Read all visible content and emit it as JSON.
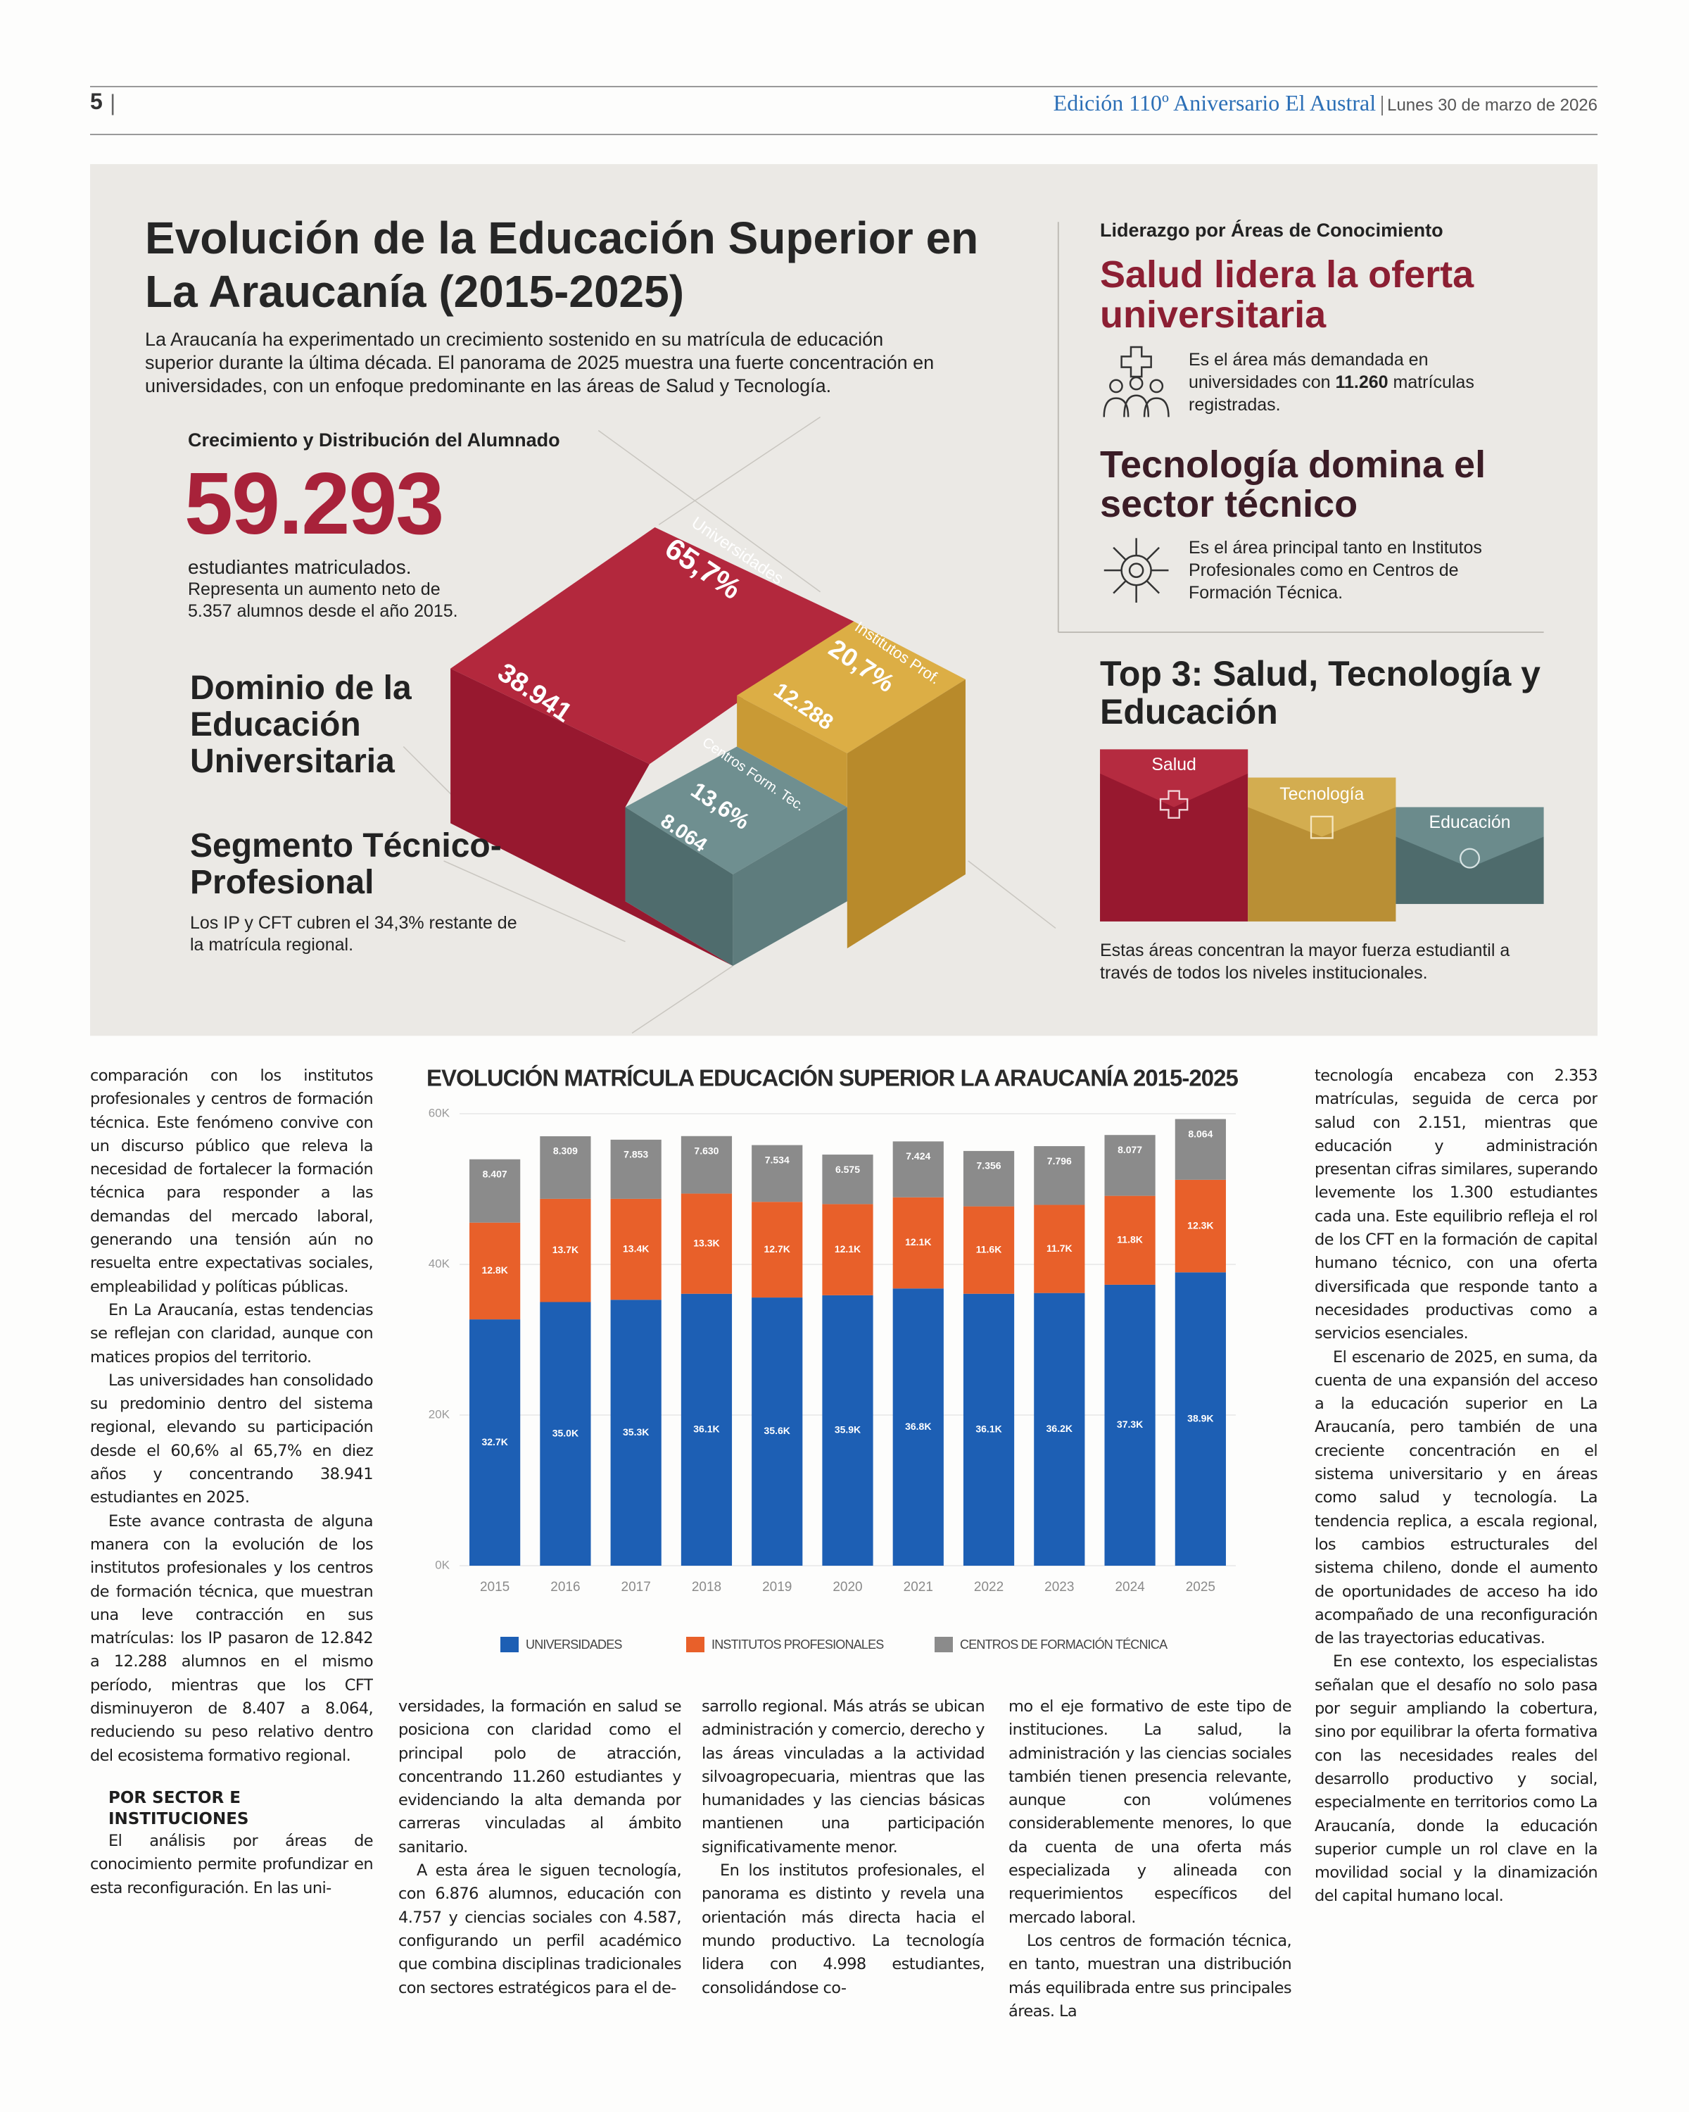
{
  "header": {
    "page_number": "5",
    "edition": "Edición 110º Aniversario El Austral",
    "date": "Lunes 30 de marzo de 2026"
  },
  "infographic": {
    "title": "Evolución de la Educación Superior en La Araucanía (2015-2025)",
    "intro": "La Araucanía ha experimentado un crecimiento sostenido en su matrícula de educación superior durante la última década. El panorama de 2025 muestra una fuerte concentración en universidades, con un enfoque predominante en las áreas de Salud y Tecnología.",
    "growth": {
      "label": "Crecimiento y Distribución del Alumnado",
      "total": "59.293",
      "caption": "estudiantes matriculados.",
      "detail": "Representa un aumento neto de 5.357 alumnos desde el año 2015."
    },
    "dominio": "Dominio de la Educación Universitaria",
    "segmento": {
      "title": "Segmento Técnico-Profesional",
      "text": "Los IP y CFT cubren el 34,3% restante de la matrícula regional."
    },
    "blocks": [
      {
        "name": "Universidades",
        "share": "65,7%",
        "students": "38.941"
      },
      {
        "name": "Institutos Prof.",
        "share": "20,7%",
        "students": "12.288"
      },
      {
        "name": "Centros Form. Tec.",
        "share": "13,6%",
        "students": "8.064"
      }
    ],
    "leadership": {
      "label": "Liderazgo por Áreas de Conocimiento",
      "salud": {
        "title": "Salud lidera la oferta universitaria",
        "text_before": "Es el área más demandada en universidades con ",
        "highlight": "11.260",
        "text_after": " matrículas registradas."
      },
      "tecnologia": {
        "title": "Tecnología domina el sector técnico",
        "text": "Es el área principal tanto en Institutos Profesionales como en Centros de Formación Técnica."
      }
    },
    "top3": {
      "title": "Top 3: Salud, Tecnología y Educación",
      "areas": [
        "Salud",
        "Tecnología",
        "Educación"
      ],
      "note": "Estas áreas concentran la mayor fuerza estudiantil a través de todos los niveles institucionales."
    }
  },
  "chart_data": {
    "type": "stacked_bar",
    "title": "EVOLUCIÓN MATRÍCULA EDUCACIÓN SUPERIOR LA ARAUCANÍA 2015-2025",
    "categories": [
      "2015",
      "2016",
      "2017",
      "2018",
      "2019",
      "2020",
      "2021",
      "2022",
      "2023",
      "2024",
      "2025"
    ],
    "series": [
      {
        "name": "UNIVERSIDADES",
        "color": "#1d5fb4",
        "label_color": "#ffffff",
        "values": [
          32700,
          35000,
          35300,
          36100,
          35600,
          35900,
          36800,
          36100,
          36200,
          37300,
          38941
        ],
        "value_labels": [
          "32.7K",
          "35.0K",
          "35.3K",
          "36.1K",
          "35.6K",
          "35.9K",
          "36.8K",
          "36.1K",
          "36.2K",
          "37.3K",
          "38.9K"
        ]
      },
      {
        "name": "INSTITUTOS PROFESIONALES",
        "color": "#e8602a",
        "label_color": "#ffffff",
        "values": [
          12842,
          13700,
          13400,
          13300,
          12700,
          12100,
          12100,
          11600,
          11700,
          11800,
          12288
        ],
        "value_labels": [
          "12.8K",
          "13.7K",
          "13.4K",
          "13.3K",
          "12.7K",
          "12.1K",
          "12.1K",
          "11.6K",
          "11.7K",
          "11.8K",
          "12.3K"
        ]
      },
      {
        "name": "CENTROS DE FORMACIÓN TÉCNICA",
        "color": "#8b8b8b",
        "label_color": "#ffffff",
        "values": [
          8407,
          8309,
          7853,
          7630,
          7534,
          6575,
          7424,
          7356,
          7796,
          8077,
          8064
        ],
        "value_labels": [
          "8.407",
          "8.309",
          "7.853",
          "7.630",
          "7.534",
          "6.575",
          "7.424",
          "7.356",
          "7.796",
          "8.077",
          "8.064"
        ]
      }
    ],
    "ylim": [
      0,
      60000
    ],
    "yticks": [
      {
        "value": 0,
        "label": "0K"
      },
      {
        "value": 20000,
        "label": "20K"
      },
      {
        "value": 40000,
        "label": "40K"
      },
      {
        "value": 60000,
        "label": "60K"
      }
    ],
    "grid": true,
    "legend": "bottom"
  },
  "article": {
    "columns": [
      {
        "paragraphs": [
          "comparación con los institutos profesionales y centros de formación técnica. Este fenómeno convive con un discurso público que releva la necesidad de fortalecer la formación técnica para responder a las demandas del mercado laboral, generando una tensión aún no resuelta entre expectativas sociales, empleabilidad y políticas públicas.",
          "En La Araucanía, estas tendencias se reflejan con claridad, aunque con matices propios del territorio.",
          "Las universidades han consolidado su predominio dentro del sistema regional, elevando su participación desde el 60,6% al 65,7% en diez años y concentrando 38.941 estudiantes en 2025.",
          "Este avance contrasta de alguna manera con la evolución de los institutos profesionales y los centros de formación técnica, que muestran una leve contracción en sus matrículas: los IP pasaron de 12.842 a 12.288 alumnos en el mismo período, mientras que los CFT disminuyeron de 8.407 a 8.064, reduciendo su peso relativo dentro del ecosistema formativo regional."
        ],
        "subhead": "POR SECTOR E INSTITUCIONES",
        "after": [
          "El análisis por áreas de conocimiento permite profundizar en esta reconfiguración. En las uni-"
        ]
      },
      {
        "paragraphs": [
          "versidades, la formación en salud se posiciona con claridad como el principal polo de atracción, concentrando 11.260 estudiantes y evidenciando la alta demanda por carreras vinculadas al ámbito sanitario.",
          "A esta área le siguen tecnología, con 6.876 alumnos, educación con 4.757 y ciencias sociales con 4.587, configurando un perfil académico que combina disciplinas tradicionales con sectores estratégicos para el de-"
        ]
      },
      {
        "paragraphs": [
          "sarrollo regional. Más atrás se ubican administración y comercio, derecho y las áreas vinculadas a la actividad silvoagropecuaria, mientras que las humanidades y las ciencias básicas mantienen una participación significativamente menor.",
          "En los institutos profesionales, el panorama es distinto y revela una orientación más directa hacia el mundo productivo. La tecnología lidera con 4.998 estudiantes, consolidándose co-"
        ]
      },
      {
        "paragraphs": [
          "mo el eje formativo de este tipo de instituciones. La salud, la administración y las ciencias sociales también tienen presencia relevante, aunque con volúmenes considerablemente menores, lo que da cuenta de una oferta más especializada y alineada con requerimientos específicos del mercado laboral.",
          "Los centros de formación técnica, en tanto, muestran una distribución más equilibrada entre sus principales áreas. La"
        ]
      },
      {
        "paragraphs": [
          "tecnología encabeza con 2.353 matrículas, seguida de cerca por salud con 2.151, mientras que educación y administración presentan cifras similares, superando levemente los 1.300 estudiantes cada una. Este equilibrio refleja el rol de los CFT en la formación de capital humano técnico, con una oferta diversificada que responde tanto a necesidades productivas como a servicios esenciales.",
          "El escenario de 2025, en suma, da cuenta de una expansión del acceso a la educación superior en La Araucanía, pero también de una creciente concentración en el sistema universitario y en áreas como salud y tecnología. La tendencia replica, a escala regional, los cambios estructurales del sistema chileno, donde el aumento de oportunidades de acceso ha ido acompañado de una reconfiguración de las trayectorias educativas.",
          "En ese contexto, los especialistas señalan que el desafío no solo pasa por seguir ampliando la cobertura, sino por equilibrar la oferta formativa con las necesidades reales del desarrollo productivo y social, especialmente en territorios como La Araucanía, donde la educación superior cumple un rol clave en la movilidad social y la dinamización del capital humano local."
        ]
      }
    ]
  }
}
